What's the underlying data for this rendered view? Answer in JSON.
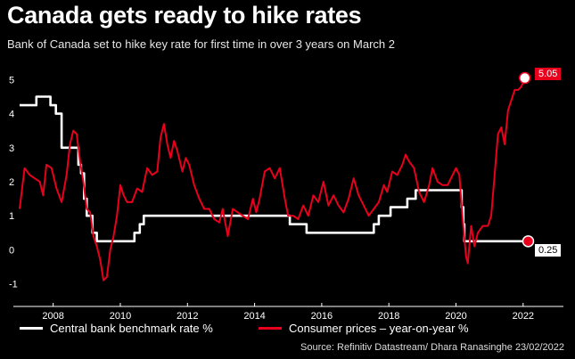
{
  "header": {
    "title": "Canada gets ready to hike rates",
    "subtitle": "Bank of Canada set to hike key rate for first time in over 3 years on March 2"
  },
  "colors": {
    "background": "#000000",
    "rate": "#ffffff",
    "cpi": "#e8001c"
  },
  "legend": {
    "rate_label": "Central bank benchmark rate %",
    "cpi_label": "Consumer prices – year-on-year %"
  },
  "source": "Source: Refinitiv Datastream/ Dhara Ranasinghe 23/02/2022",
  "end_labels": {
    "cpi": "5.05",
    "rate": "0.25"
  },
  "chart_data": {
    "type": "line",
    "title": "Canada gets ready to hike rates",
    "xlabel": "",
    "ylabel": "",
    "xlim": [
      2007.0,
      2022.35
    ],
    "ylim": [
      -1.3,
      5.3
    ],
    "x_ticks": [
      2008,
      2010,
      2012,
      2014,
      2016,
      2018,
      2020,
      2022
    ],
    "y_ticks": [
      -1,
      0,
      1,
      2,
      3,
      4,
      5
    ],
    "grid": false,
    "series": [
      {
        "name": "Central bank benchmark rate %",
        "color": "#ffffff",
        "step": true,
        "points": [
          [
            2007.0,
            4.25
          ],
          [
            2007.5,
            4.5
          ],
          [
            2007.92,
            4.25
          ],
          [
            2008.08,
            4.0
          ],
          [
            2008.25,
            3.0
          ],
          [
            2008.75,
            2.5
          ],
          [
            2008.83,
            2.25
          ],
          [
            2008.92,
            1.5
          ],
          [
            2009.0,
            1.0
          ],
          [
            2009.17,
            0.5
          ],
          [
            2009.3,
            0.25
          ],
          [
            2010.42,
            0.5
          ],
          [
            2010.58,
            0.75
          ],
          [
            2010.7,
            1.0
          ],
          [
            2015.05,
            0.75
          ],
          [
            2015.55,
            0.5
          ],
          [
            2017.55,
            0.75
          ],
          [
            2017.7,
            1.0
          ],
          [
            2018.05,
            1.25
          ],
          [
            2018.55,
            1.5
          ],
          [
            2018.8,
            1.75
          ],
          [
            2020.17,
            1.25
          ],
          [
            2020.22,
            0.75
          ],
          [
            2020.25,
            0.25
          ],
          [
            2022.15,
            0.25
          ]
        ]
      },
      {
        "name": "Consumer prices – year-on-year %",
        "color": "#e8001c",
        "points": [
          [
            2007.0,
            1.2
          ],
          [
            2007.15,
            2.4
          ],
          [
            2007.3,
            2.2
          ],
          [
            2007.45,
            2.1
          ],
          [
            2007.6,
            2.0
          ],
          [
            2007.7,
            1.6
          ],
          [
            2007.8,
            2.5
          ],
          [
            2007.95,
            2.4
          ],
          [
            2008.1,
            1.8
          ],
          [
            2008.25,
            1.4
          ],
          [
            2008.4,
            2.2
          ],
          [
            2008.5,
            3.1
          ],
          [
            2008.6,
            3.5
          ],
          [
            2008.7,
            3.4
          ],
          [
            2008.8,
            2.6
          ],
          [
            2008.9,
            2.0
          ],
          [
            2009.0,
            1.2
          ],
          [
            2009.1,
            1.1
          ],
          [
            2009.2,
            0.4
          ],
          [
            2009.3,
            0.1
          ],
          [
            2009.4,
            -0.3
          ],
          [
            2009.5,
            -0.9
          ],
          [
            2009.6,
            -0.8
          ],
          [
            2009.7,
            0.0
          ],
          [
            2009.8,
            0.4
          ],
          [
            2009.9,
            1.0
          ],
          [
            2010.0,
            1.9
          ],
          [
            2010.1,
            1.6
          ],
          [
            2010.2,
            1.4
          ],
          [
            2010.35,
            1.4
          ],
          [
            2010.5,
            1.8
          ],
          [
            2010.65,
            1.7
          ],
          [
            2010.8,
            2.4
          ],
          [
            2010.95,
            2.2
          ],
          [
            2011.1,
            2.3
          ],
          [
            2011.2,
            3.3
          ],
          [
            2011.3,
            3.7
          ],
          [
            2011.4,
            3.1
          ],
          [
            2011.5,
            2.7
          ],
          [
            2011.6,
            3.2
          ],
          [
            2011.7,
            2.9
          ],
          [
            2011.85,
            2.3
          ],
          [
            2011.95,
            2.7
          ],
          [
            2012.05,
            2.5
          ],
          [
            2012.2,
            1.9
          ],
          [
            2012.35,
            1.5
          ],
          [
            2012.5,
            1.2
          ],
          [
            2012.65,
            1.2
          ],
          [
            2012.8,
            0.9
          ],
          [
            2012.95,
            0.8
          ],
          [
            2013.05,
            1.2
          ],
          [
            2013.2,
            0.4
          ],
          [
            2013.35,
            1.2
          ],
          [
            2013.5,
            1.1
          ],
          [
            2013.65,
            1.0
          ],
          [
            2013.8,
            0.9
          ],
          [
            2013.95,
            1.5
          ],
          [
            2014.05,
            1.1
          ],
          [
            2014.15,
            1.5
          ],
          [
            2014.3,
            2.3
          ],
          [
            2014.45,
            2.4
          ],
          [
            2014.6,
            2.1
          ],
          [
            2014.75,
            2.4
          ],
          [
            2014.9,
            1.5
          ],
          [
            2015.0,
            1.0
          ],
          [
            2015.15,
            1.0
          ],
          [
            2015.3,
            0.9
          ],
          [
            2015.45,
            1.3
          ],
          [
            2015.6,
            1.0
          ],
          [
            2015.75,
            1.6
          ],
          [
            2015.9,
            1.4
          ],
          [
            2016.05,
            2.0
          ],
          [
            2016.2,
            1.3
          ],
          [
            2016.35,
            1.6
          ],
          [
            2016.5,
            1.3
          ],
          [
            2016.65,
            1.1
          ],
          [
            2016.8,
            1.5
          ],
          [
            2016.95,
            2.1
          ],
          [
            2017.1,
            1.6
          ],
          [
            2017.25,
            1.3
          ],
          [
            2017.4,
            1.0
          ],
          [
            2017.55,
            1.2
          ],
          [
            2017.7,
            1.4
          ],
          [
            2017.85,
            1.9
          ],
          [
            2017.95,
            1.7
          ],
          [
            2018.1,
            2.3
          ],
          [
            2018.25,
            2.2
          ],
          [
            2018.4,
            2.5
          ],
          [
            2018.5,
            2.8
          ],
          [
            2018.6,
            2.6
          ],
          [
            2018.75,
            2.4
          ],
          [
            2018.9,
            1.7
          ],
          [
            2019.05,
            1.4
          ],
          [
            2019.2,
            1.9
          ],
          [
            2019.3,
            2.4
          ],
          [
            2019.45,
            2.0
          ],
          [
            2019.6,
            1.9
          ],
          [
            2019.75,
            1.9
          ],
          [
            2019.9,
            2.2
          ],
          [
            2020.0,
            2.4
          ],
          [
            2020.1,
            2.2
          ],
          [
            2020.2,
            0.9
          ],
          [
            2020.3,
            -0.2
          ],
          [
            2020.35,
            -0.4
          ],
          [
            2020.45,
            0.7
          ],
          [
            2020.55,
            0.1
          ],
          [
            2020.65,
            0.5
          ],
          [
            2020.8,
            0.7
          ],
          [
            2020.95,
            0.7
          ],
          [
            2021.05,
            1.0
          ],
          [
            2021.15,
            2.2
          ],
          [
            2021.25,
            3.4
          ],
          [
            2021.35,
            3.6
          ],
          [
            2021.45,
            3.1
          ],
          [
            2021.55,
            4.1
          ],
          [
            2021.65,
            4.4
          ],
          [
            2021.75,
            4.7
          ],
          [
            2021.85,
            4.7
          ],
          [
            2021.95,
            4.8
          ],
          [
            2022.05,
            5.05
          ]
        ]
      }
    ]
  }
}
